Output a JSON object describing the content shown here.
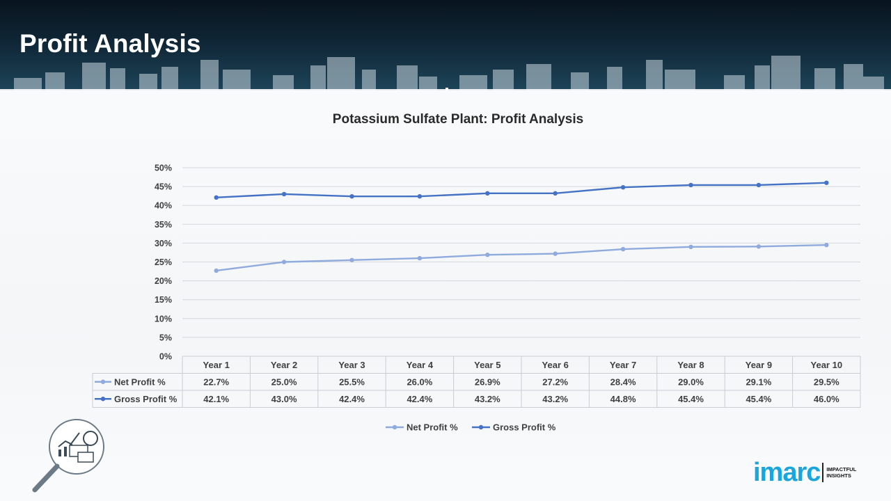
{
  "header": {
    "title": "Profit Analysis"
  },
  "chart_data": {
    "type": "line",
    "title": "Potassium Sulfate Plant: Profit Analysis",
    "categories": [
      "Year 1",
      "Year 2",
      "Year 3",
      "Year 4",
      "Year 5",
      "Year 6",
      "Year 7",
      "Year 8",
      "Year 9",
      "Year 10"
    ],
    "series": [
      {
        "name": "Net Profit %",
        "color": "#8faadc",
        "values": [
          22.7,
          25.0,
          25.5,
          26.0,
          26.9,
          27.2,
          28.4,
          29.0,
          29.1,
          29.5
        ],
        "labels": [
          "22.7%",
          "25.0%",
          "25.5%",
          "26.0%",
          "26.9%",
          "27.2%",
          "28.4%",
          "29.0%",
          "29.1%",
          "29.5%"
        ]
      },
      {
        "name": "Gross Profit %",
        "color": "#4472c4",
        "values": [
          42.1,
          43.0,
          42.4,
          42.4,
          43.2,
          43.2,
          44.8,
          45.4,
          45.4,
          46.0
        ],
        "labels": [
          "42.1%",
          "43.0%",
          "42.4%",
          "42.4%",
          "43.2%",
          "43.2%",
          "44.8%",
          "45.4%",
          "45.4%",
          "46.0%"
        ]
      }
    ],
    "ylim": [
      0,
      50
    ],
    "yticks": [
      "0%",
      "5%",
      "10%",
      "15%",
      "20%",
      "25%",
      "30%",
      "35%",
      "40%",
      "45%",
      "50%"
    ],
    "grid": true,
    "legend": "bottom",
    "data_table": true
  },
  "brand": {
    "name": "imarc",
    "tag_line1": "IMPACTFUL",
    "tag_line2": "INSIGHTS",
    "accent": "#1aa5dc"
  }
}
